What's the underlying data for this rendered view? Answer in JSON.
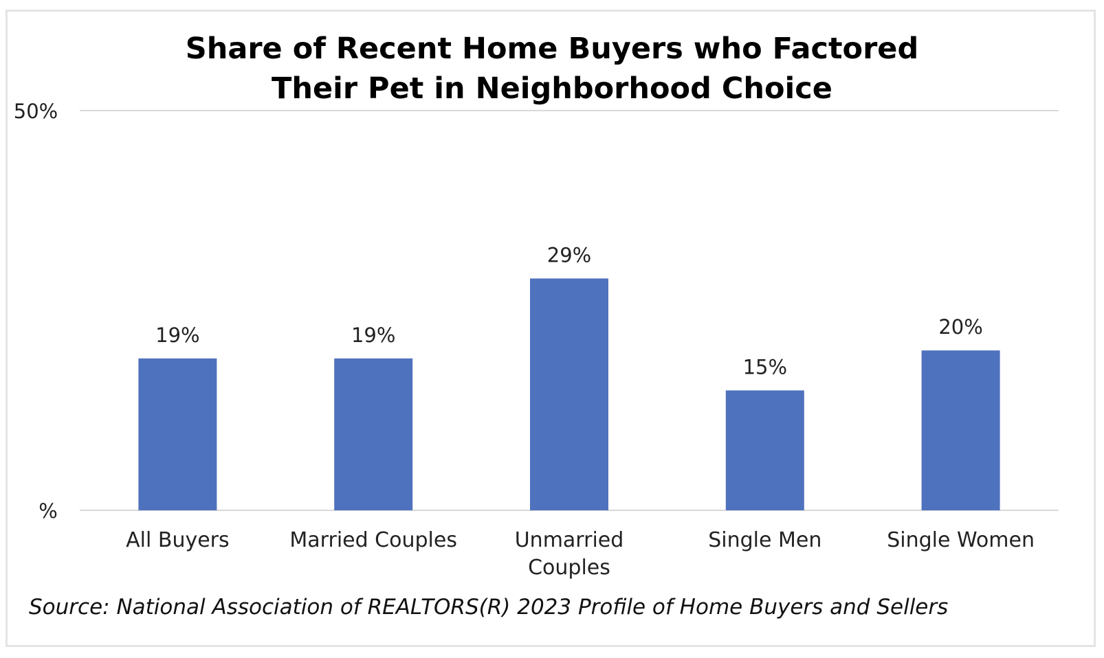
{
  "chart_data": {
    "type": "bar",
    "title": "Share of Recent Home Buyers who Factored Their Pet in Neighborhood Choice",
    "title_lines": [
      "Share of Recent Home Buyers who Factored",
      "Their Pet in Neighborhood Choice"
    ],
    "categories": [
      "All Buyers",
      "Married Couples",
      "Unmarried Couples",
      "Single Men",
      "Single Women"
    ],
    "category_lines": [
      [
        "All Buyers"
      ],
      [
        "Married Couples"
      ],
      [
        "Unmarried",
        "Couples"
      ],
      [
        "Single Men"
      ],
      [
        "Single Women"
      ]
    ],
    "values": [
      19,
      19,
      29,
      15,
      20
    ],
    "data_labels": [
      "19%",
      "19%",
      "29%",
      "15%",
      "20%"
    ],
    "ylim": [
      0,
      50
    ],
    "y_tick_labels": [
      "%",
      "50%"
    ],
    "xlabel": "",
    "ylabel": "",
    "grid": true,
    "legend": "none",
    "bar_color": "#4f72be"
  },
  "source": "Source: National Association of REALTORS(R) 2023 Profile of Home Buyers and Sellers"
}
